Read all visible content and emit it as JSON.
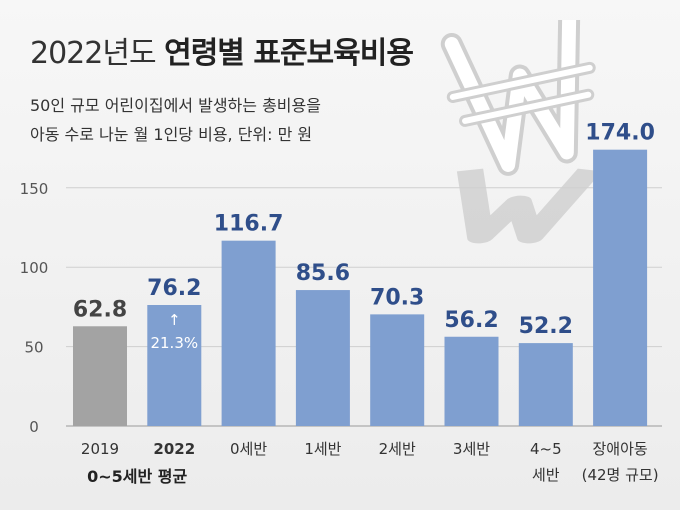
{
  "header": {
    "title_year": "2022년도",
    "title_main": "연령별 표준보육비용",
    "subtitle_line1": "50인 규모 어린이집에서 발생하는 총비용을",
    "subtitle_line2": "아동 수로 나눈 월 1인당 비용, 단위: 만 원"
  },
  "colors": {
    "bar_gray": "#a3a3a3",
    "bar_blue": "#7f9fd0",
    "value_gray": "#444444",
    "value_blue": "#2f4e8a"
  },
  "icon": "won-sign-icon",
  "chart_data": {
    "type": "bar",
    "title": "연령별 표준보육비용",
    "unit": "만 원",
    "ylim": [
      0,
      170
    ],
    "yticks": [
      0,
      50,
      100,
      150
    ],
    "grid": true,
    "categories": [
      {
        "line1": "2019",
        "line2": ""
      },
      {
        "line1": "2022",
        "line2": ""
      },
      {
        "line1": "0세반",
        "line2": ""
      },
      {
        "line1": "1세반",
        "line2": ""
      },
      {
        "line1": "2세반",
        "line2": ""
      },
      {
        "line1": "3세반",
        "line2": ""
      },
      {
        "line1": "4~5",
        "line2": "세반"
      },
      {
        "line1": "장애아동",
        "line2": "(42명 규모)"
      }
    ],
    "group_label": "0~5세반 평균",
    "values": [
      62.8,
      76.2,
      116.7,
      85.6,
      70.3,
      56.2,
      52.2,
      174.0
    ],
    "value_labels": [
      "62.8",
      "76.2",
      "116.7",
      "85.6",
      "70.3",
      "56.2",
      "52.2",
      "174.0"
    ],
    "annotation": {
      "index": 1,
      "arrow": "↑",
      "text": "21.3%"
    }
  }
}
